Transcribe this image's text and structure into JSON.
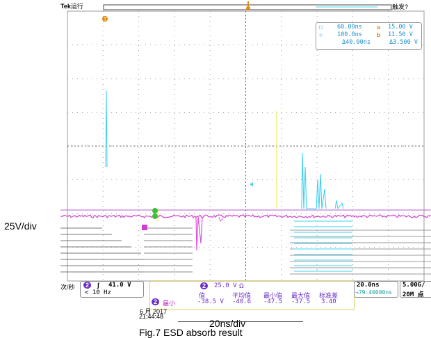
{
  "scope": {
    "brand": "Tek",
    "run_state": "运行",
    "trigger_status": "触发?",
    "cursor_readout": {
      "row1": {
        "a_time": "60.00ns",
        "a_val": "15.00 V"
      },
      "row2": {
        "b_time": "100.0ns",
        "b_val": "11.50 V"
      },
      "row3": {
        "delta_time": "Δ40.00ns",
        "delta_val": "Δ3.500 V"
      },
      "marker_a": "a",
      "marker_b": "b"
    },
    "bottom": {
      "horiz_unit_fragment": "次/秒",
      "trigger_channel": "2",
      "trigger_level": "41.0 V",
      "trigger_freq": "< 10 Hz",
      "ch2_scale": "25.0 V",
      "ch2_scale_unit": "Ω",
      "meas_headers": [
        "值",
        "平均值",
        "最小值",
        "最大值",
        "标准差"
      ],
      "meas_label": "最小",
      "meas_values": [
        "-38.5 V",
        "-40.6",
        "-47.5",
        "-37.5",
        "3.40"
      ],
      "timebase": "20.0ns",
      "timebase_delay": "→79.40000ns",
      "sample_rate": "5.00G/",
      "record_length": "20M 点",
      "date_fragment": "6 月 2017",
      "time": "21:44:48"
    },
    "colors": {
      "ch1": "#40d0f0",
      "ch2": "#d040d0",
      "ch3": "#e8e830",
      "grid": "#9a9a9a",
      "trigger_marker": "#e08a10"
    },
    "icons": [
      "trigger-level-marker",
      "channel-2-ground-marker"
    ]
  },
  "annotations": {
    "vertical_scale": "25V/div",
    "horizontal_scale": "20ns/div",
    "figure_caption": "Fig.7  ESD absorb result"
  }
}
